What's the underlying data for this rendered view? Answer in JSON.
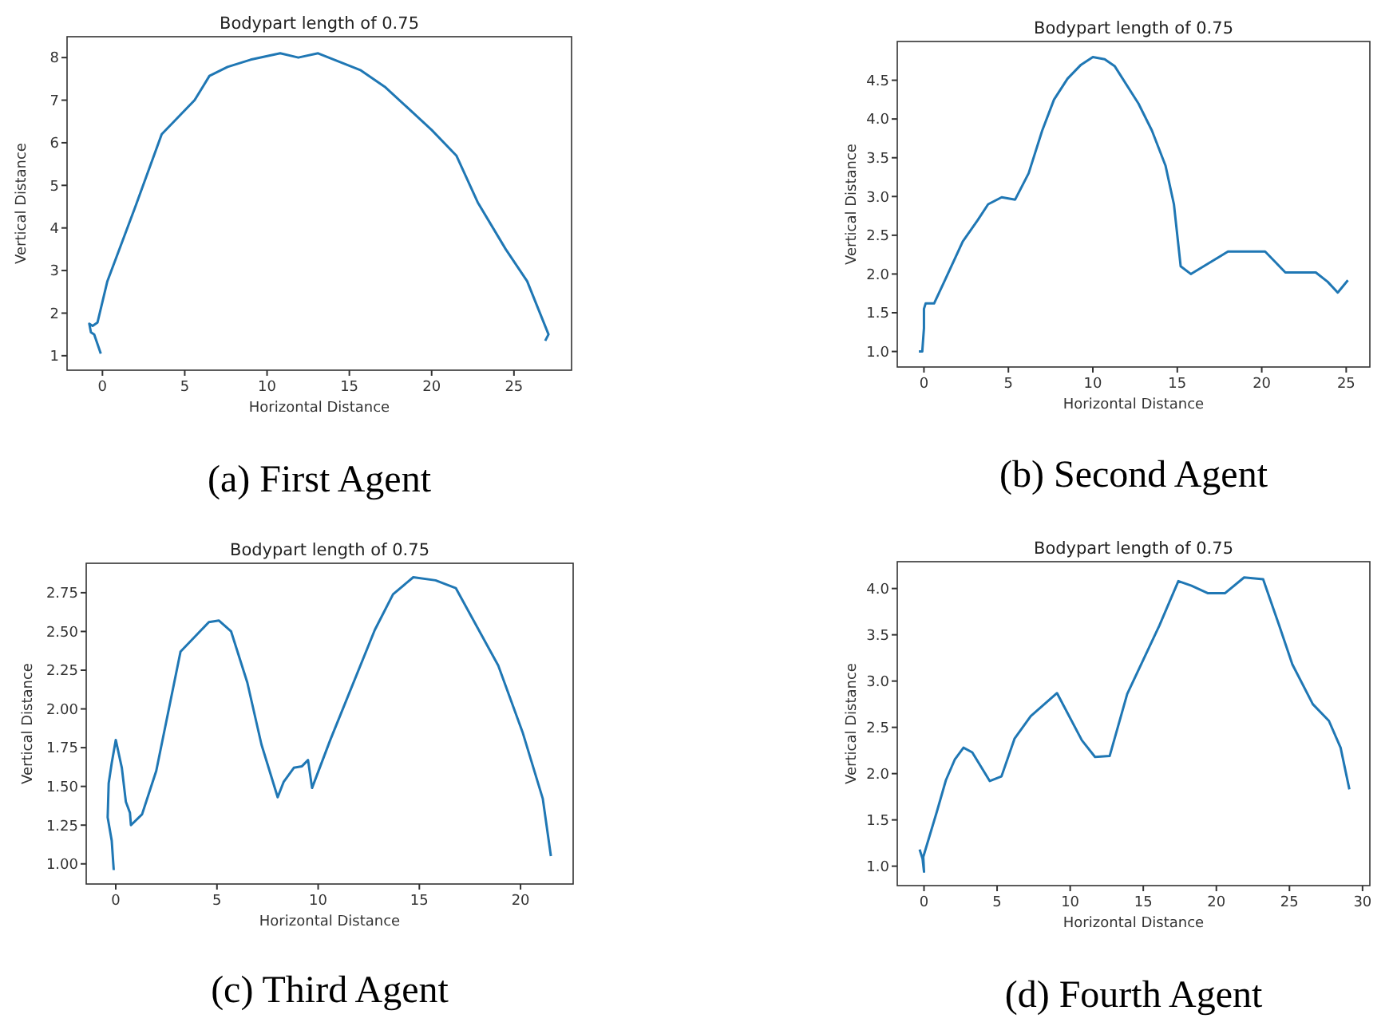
{
  "chart_data": [
    {
      "type": "line",
      "title": "Bodypart length of 0.75",
      "xlabel": "Horizontal Distance",
      "ylabel": "Vertical Distance",
      "annotations": [
        "(a) First Agent"
      ],
      "grid": false,
      "xlim": [
        -2.15,
        28.5
      ],
      "ylim": [
        0.66,
        8.49
      ],
      "xticks": [
        0,
        5,
        10,
        15,
        20,
        25
      ],
      "yticks": [
        1,
        2,
        3,
        4,
        5,
        6,
        7,
        8
      ],
      "series": [
        {
          "color": "#1f77b4",
          "x": [
            -0.1,
            -0.5,
            -0.7,
            -0.8,
            -0.6,
            -0.3,
            0.3,
            2,
            3.6,
            5.6,
            6.5,
            7.6,
            9,
            10.8,
            11.9,
            13.1,
            15.7,
            17.2,
            18.6,
            20,
            21.5,
            22.8,
            24.5,
            25.8,
            27.1,
            26.9
          ],
          "values": [
            1.05,
            1.5,
            1.55,
            1.75,
            1.7,
            1.78,
            2.75,
            4.5,
            6.2,
            7.0,
            7.57,
            7.78,
            7.95,
            8.1,
            8.0,
            8.1,
            7.7,
            7.3,
            6.8,
            6.3,
            5.7,
            4.6,
            3.5,
            2.75,
            1.5,
            1.35
          ]
        }
      ]
    },
    {
      "type": "line",
      "title": "Bodypart length of 0.75",
      "xlabel": "Horizontal Distance",
      "ylabel": "Vertical Distance",
      "annotations": [
        "(b) Second Agent"
      ],
      "grid": false,
      "xlim": [
        -1.58,
        26.4
      ],
      "ylim": [
        0.8,
        5.0
      ],
      "xticks": [
        0,
        5,
        10,
        15,
        20,
        25
      ],
      "yticks": [
        {
          "value": 1,
          "label": "1.0"
        },
        1.5,
        {
          "value": 2,
          "label": "2.0"
        },
        2.5,
        {
          "value": 3,
          "label": "3.0"
        },
        3.5,
        {
          "value": 4,
          "label": "4.0"
        },
        4.5
      ],
      "series": [
        {
          "color": "#1f77b4",
          "x": [
            -0.3,
            -0.1,
            0,
            0,
            0.1,
            0.6,
            1.2,
            2.3,
            3.2,
            3.8,
            4.6,
            5.4,
            6.2,
            7,
            7.7,
            8.5,
            9.3,
            10,
            10.7,
            11.3,
            12.7,
            13.5,
            14.3,
            14.8,
            15.2,
            15.8,
            18,
            20.2,
            21.4,
            23.2,
            23.9,
            24.5,
            25.1
          ],
          "values": [
            1.0,
            1.0,
            1.3,
            1.55,
            1.62,
            1.62,
            1.9,
            2.42,
            2.7,
            2.9,
            2.99,
            2.96,
            3.3,
            3.85,
            4.25,
            4.52,
            4.7,
            4.8,
            4.77,
            4.68,
            4.2,
            3.85,
            3.4,
            2.9,
            2.1,
            2.0,
            2.29,
            2.29,
            2.02,
            2.02,
            1.9,
            1.76,
            1.92
          ]
        }
      ]
    },
    {
      "type": "line",
      "title": "Bodypart length of 0.75",
      "xlabel": "Horizontal Distance",
      "ylabel": "Vertical Distance",
      "annotations": [
        "(c) Third Agent"
      ],
      "grid": false,
      "xlim": [
        -1.46,
        22.6
      ],
      "ylim": [
        0.87,
        2.94
      ],
      "xticks": [
        0,
        5,
        10,
        15,
        20
      ],
      "yticks": [
        {
          "value": 1,
          "label": "1.00"
        },
        1.25,
        {
          "value": 1.5,
          "label": "1.50"
        },
        1.75,
        {
          "value": 2,
          "label": "2.00"
        },
        2.25,
        {
          "value": 2.5,
          "label": "2.50"
        },
        2.75
      ],
      "series": [
        {
          "color": "#1f77b4",
          "x": [
            -0.1,
            -0.2,
            -0.4,
            -0.35,
            -0.2,
            0,
            0.3,
            0.5,
            0.7,
            0.75,
            1.3,
            2,
            3.2,
            4.6,
            5.1,
            5.7,
            6.5,
            7.2,
            8,
            8.3,
            8.8,
            9.2,
            9.5,
            9.7,
            10.6,
            12.8,
            13.7,
            14.7,
            15.8,
            16.8,
            18.9,
            20.1,
            21.1,
            21.5
          ],
          "values": [
            0.96,
            1.15,
            1.3,
            1.52,
            1.65,
            1.8,
            1.62,
            1.4,
            1.33,
            1.25,
            1.32,
            1.6,
            2.37,
            2.56,
            2.57,
            2.5,
            2.17,
            1.77,
            1.43,
            1.53,
            1.62,
            1.63,
            1.67,
            1.49,
            1.8,
            2.51,
            2.74,
            2.85,
            2.83,
            2.78,
            2.28,
            1.85,
            1.42,
            1.05
          ]
        }
      ]
    },
    {
      "type": "line",
      "title": "Bodypart length of 0.75",
      "xlabel": "Horizontal Distance",
      "ylabel": "Vertical Distance",
      "annotations": [
        "(d) Fourth Agent"
      ],
      "grid": false,
      "xlim": [
        -1.83,
        30.5
      ],
      "ylim": [
        0.79,
        4.29
      ],
      "xticks": [
        0,
        5,
        10,
        15,
        20,
        25,
        30
      ],
      "yticks": [
        {
          "value": 1,
          "label": "1.0"
        },
        1.5,
        {
          "value": 2,
          "label": "2.0"
        },
        2.5,
        {
          "value": 3,
          "label": "3.0"
        },
        3.5,
        {
          "value": 4,
          "label": "4.0"
        }
      ],
      "series": [
        {
          "color": "#1f77b4",
          "x": [
            -0.3,
            -0.1,
            0,
            -0.05,
            0.9,
            1.5,
            2.1,
            2.7,
            3.3,
            4.5,
            5.3,
            6.2,
            7.3,
            9.1,
            10.8,
            11.7,
            12.7,
            13.9,
            16.1,
            17.4,
            18.3,
            19.4,
            20.6,
            21.9,
            23.2,
            24.3,
            25.2,
            26.6,
            27.7,
            28.5,
            29.1
          ],
          "values": [
            1.18,
            1.08,
            0.94,
            1.1,
            1.6,
            1.93,
            2.15,
            2.28,
            2.23,
            1.92,
            1.97,
            2.38,
            2.62,
            2.87,
            2.36,
            2.18,
            2.19,
            2.86,
            3.6,
            4.08,
            4.03,
            3.95,
            3.95,
            4.12,
            4.1,
            3.6,
            3.18,
            2.75,
            2.57,
            2.28,
            1.83
          ]
        }
      ]
    }
  ]
}
